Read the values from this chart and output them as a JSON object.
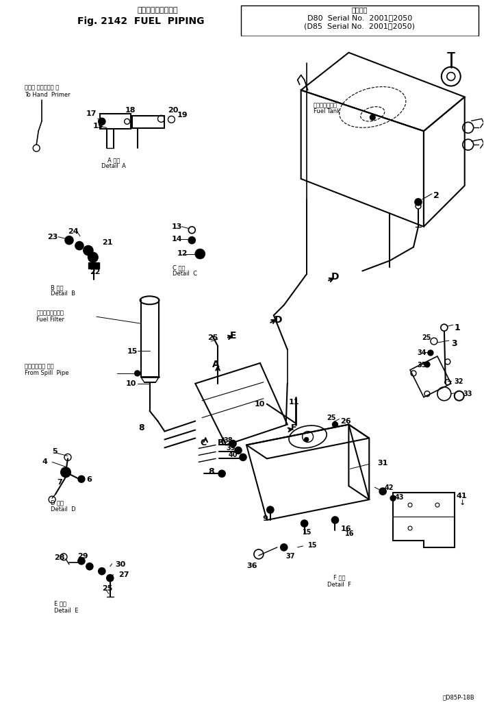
{
  "bg": "#ffffff",
  "ink": "#000000",
  "title_jp": "フェエルパイピング",
  "title_en": "Fig. 2142  FUEL  PIPING",
  "serial_hdr": "適用号等",
  "serial1": "D80  Serial No.  2001～2050",
  "serial2": "(D85  Serial No.  2001～2050)",
  "copyright": "ⓓD85P-18B"
}
